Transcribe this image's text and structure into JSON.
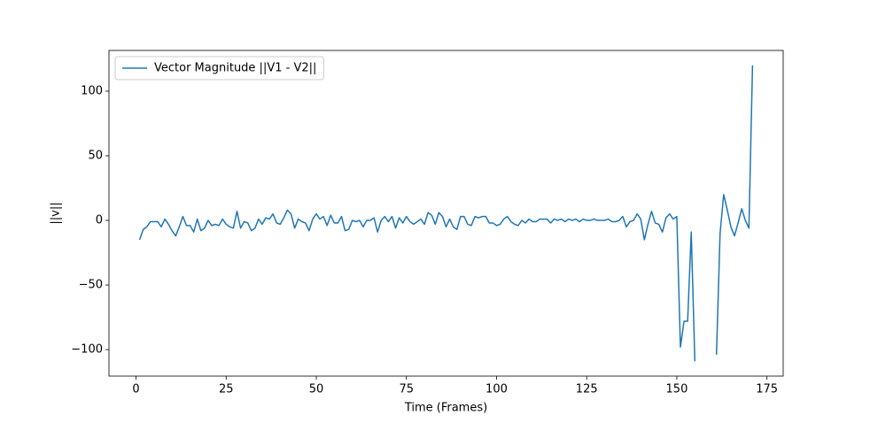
{
  "chart_data": {
    "type": "line",
    "x_label": "Time (Frames)",
    "y_label": "||v||",
    "x": [
      1,
      2,
      3,
      4,
      5,
      6,
      7,
      8,
      9,
      10,
      11,
      12,
      13,
      14,
      15,
      16,
      17,
      18,
      19,
      20,
      21,
      22,
      23,
      24,
      25,
      26,
      27,
      28,
      29,
      30,
      31,
      32,
      33,
      34,
      35,
      36,
      37,
      38,
      39,
      40,
      41,
      42,
      43,
      44,
      45,
      46,
      47,
      48,
      49,
      50,
      51,
      52,
      53,
      54,
      55,
      56,
      57,
      58,
      59,
      60,
      61,
      62,
      63,
      64,
      65,
      66,
      67,
      68,
      69,
      70,
      71,
      72,
      73,
      74,
      75,
      76,
      77,
      78,
      79,
      80,
      81,
      82,
      83,
      84,
      85,
      86,
      87,
      88,
      89,
      90,
      91,
      92,
      93,
      94,
      95,
      96,
      97,
      98,
      99,
      100,
      101,
      102,
      103,
      104,
      105,
      106,
      107,
      108,
      109,
      110,
      111,
      112,
      113,
      114,
      115,
      116,
      117,
      118,
      119,
      120,
      121,
      122,
      123,
      124,
      125,
      126,
      127,
      128,
      129,
      130,
      131,
      132,
      133,
      134,
      135,
      136,
      137,
      138,
      139,
      140,
      141,
      142,
      143,
      144,
      145,
      146,
      147,
      148,
      149,
      150,
      151,
      152,
      153,
      154,
      155,
      156,
      157,
      158,
      159,
      160,
      161,
      162,
      163,
      164,
      165,
      166,
      167,
      168,
      169,
      170,
      171
    ],
    "series": [
      {
        "name": "Vector Magnitude ||V1 - V2||",
        "color": "#1f77b4",
        "values": [
          -15,
          -7,
          -5,
          -1,
          -1,
          -1,
          -5,
          1,
          -3,
          -8,
          -12,
          -5,
          3,
          -4,
          -4,
          -9,
          1,
          -8,
          -6,
          0,
          -4,
          -3,
          -4,
          1,
          -3,
          -5,
          -6,
          7,
          -6,
          -1,
          -2,
          -8,
          -6,
          1,
          -3,
          2,
          1,
          5,
          -2,
          -3,
          2,
          8,
          5,
          -6,
          1,
          -1,
          -2,
          -8,
          1,
          5,
          1,
          3,
          -4,
          4,
          -2,
          -2,
          3,
          -8,
          -7,
          0,
          -1,
          0,
          -5,
          0,
          0,
          2,
          -9,
          0,
          3,
          -1,
          3,
          -6,
          2,
          -2,
          3,
          -1,
          -3,
          -1,
          1,
          -3,
          6,
          4,
          -3,
          6,
          3,
          -5,
          1,
          -5,
          -7,
          3,
          3,
          -3,
          -4,
          3,
          2,
          3,
          3,
          -2,
          -2,
          -4,
          -3,
          1,
          3,
          -1,
          -3,
          -4,
          0,
          -2,
          1,
          -1,
          -1,
          1,
          1,
          1,
          -2,
          1,
          0,
          1,
          -1,
          1,
          0,
          1,
          -1,
          1,
          0,
          0,
          1,
          0,
          0,
          0,
          1,
          -1,
          -1,
          0,
          3,
          -5,
          -1,
          0,
          5,
          1,
          -15,
          -3,
          7,
          -2,
          -3,
          -9,
          2,
          5,
          1,
          3,
          -98,
          -78,
          -78,
          -9,
          -109,
          null,
          null,
          null,
          null,
          null,
          -104,
          -10,
          20,
          8,
          -5,
          -12,
          -2,
          9,
          0,
          -6,
          120
        ]
      }
    ],
    "xlim": [
      -7.5,
      179.5
    ],
    "ylim": [
      -120.5,
      131.5
    ],
    "xticks": [
      0,
      25,
      50,
      75,
      100,
      125,
      150,
      175
    ],
    "yticks": [
      {
        "value": -100,
        "label": "−100"
      },
      {
        "value": -50,
        "label": "−50"
      },
      0,
      50,
      100
    ],
    "legend": "upper left"
  }
}
